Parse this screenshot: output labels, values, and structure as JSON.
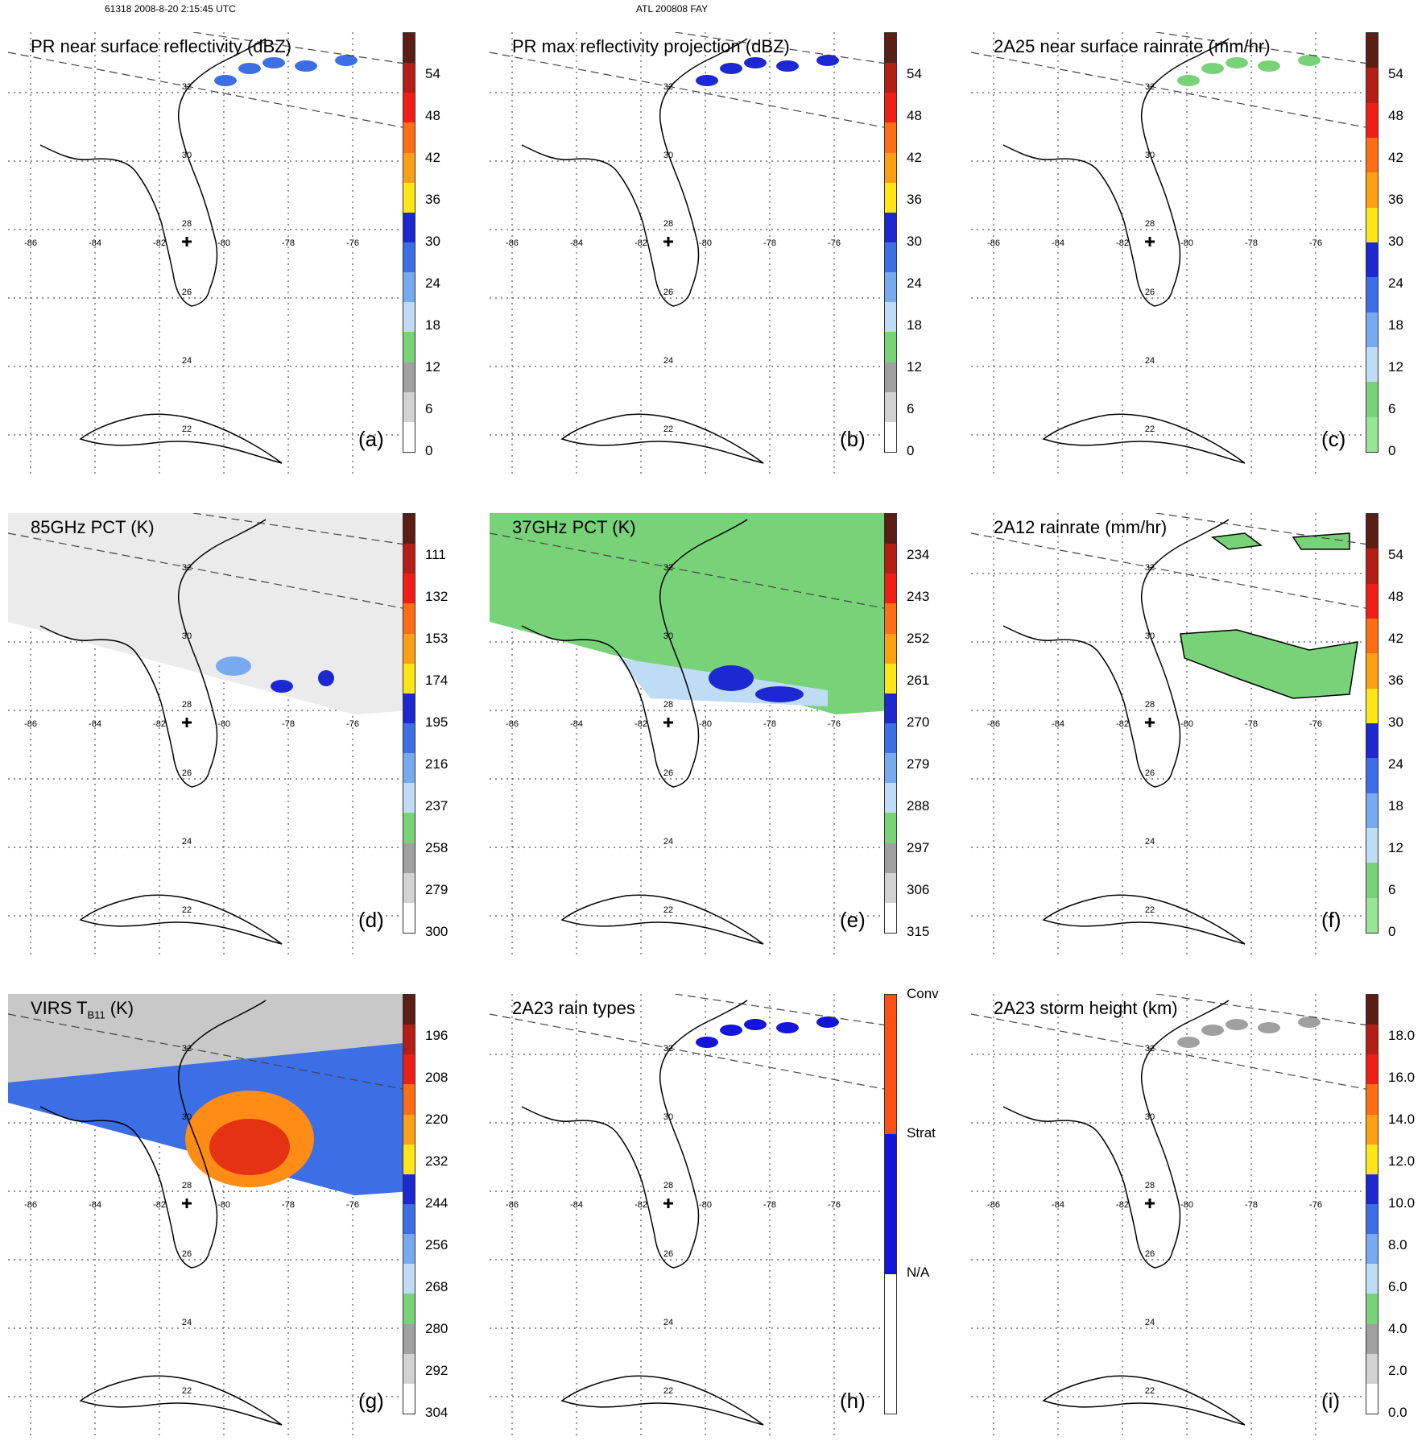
{
  "header": {
    "orbit_label": "61318 2008-8-20 2:15:45 UTC",
    "case_label": "ATL 200808 FAY"
  },
  "map": {
    "lon_labels": [
      "-86",
      "-84",
      "-82",
      "-80",
      "-78",
      "-76"
    ],
    "lat_labels": [
      "32",
      "30",
      "28",
      "26",
      "24",
      "22"
    ]
  },
  "panels": [
    {
      "id": "a",
      "title": "PR near surface reflectivity (dBZ)",
      "label": "(a)",
      "ticks": [
        "54",
        "48",
        "42",
        "36",
        "30",
        "24",
        "18",
        "12",
        "6",
        "0"
      ],
      "colors": [
        "#5a1e14",
        "#b41e14",
        "#f01e14",
        "#ff6e14",
        "#ffa014",
        "#ffe614",
        "#1e28d2",
        "#3c6ee6",
        "#78aaf0",
        "#bedcf5",
        "#78d278",
        "#a0a0a0",
        "#d2d2d2",
        "#ffffff"
      ]
    },
    {
      "id": "b",
      "title": "PR max reflectivity projection (dBZ)",
      "label": "(b)",
      "ticks": [
        "54",
        "48",
        "42",
        "36",
        "30",
        "24",
        "18",
        "12",
        "6",
        "0"
      ],
      "colors": [
        "#5a1e14",
        "#b41e14",
        "#f01e14",
        "#ff6e14",
        "#ffa014",
        "#ffe614",
        "#1e28d2",
        "#3c6ee6",
        "#78aaf0",
        "#bedcf5",
        "#78d278",
        "#a0a0a0",
        "#d2d2d2",
        "#ffffff"
      ]
    },
    {
      "id": "c",
      "title": "2A25 near surface rainrate (mm/hr)",
      "label": "(c)",
      "ticks": [
        "54",
        "48",
        "42",
        "36",
        "30",
        "24",
        "18",
        "12",
        "6",
        "0"
      ],
      "colors": [
        "#5a1e14",
        "#b41e14",
        "#f01e14",
        "#ff6e14",
        "#ffa014",
        "#ffe614",
        "#1e28d2",
        "#3c6ee6",
        "#78aaf0",
        "#bedcf5",
        "#78d278",
        "#96e696"
      ]
    },
    {
      "id": "d",
      "title": "85GHz PCT (K)",
      "label": "(d)",
      "ticks": [
        "111",
        "132",
        "153",
        "174",
        "195",
        "216",
        "237",
        "258",
        "279",
        "300"
      ],
      "colors": [
        "#5a1e14",
        "#b41e14",
        "#f01e14",
        "#ff6e14",
        "#ffa014",
        "#ffe614",
        "#1e28d2",
        "#3c6ee6",
        "#78aaf0",
        "#bedcf5",
        "#78d278",
        "#a0a0a0",
        "#d2d2d2",
        "#ffffff"
      ]
    },
    {
      "id": "e",
      "title": "37GHz PCT (K)",
      "label": "(e)",
      "ticks": [
        "234",
        "243",
        "252",
        "261",
        "270",
        "279",
        "288",
        "297",
        "306",
        "315"
      ],
      "colors": [
        "#5a1e14",
        "#b41e14",
        "#f01e14",
        "#ff6e14",
        "#ffa014",
        "#ffe614",
        "#1e28d2",
        "#3c6ee6",
        "#78aaf0",
        "#bedcf5",
        "#78d278",
        "#a0a0a0",
        "#d2d2d2",
        "#ffffff"
      ]
    },
    {
      "id": "f",
      "title": "2A12 rainrate (mm/hr)",
      "label": "(f)",
      "ticks": [
        "54",
        "48",
        "42",
        "36",
        "30",
        "24",
        "18",
        "12",
        "6",
        "0"
      ],
      "colors": [
        "#5a1e14",
        "#b41e14",
        "#f01e14",
        "#ff6e14",
        "#ffa014",
        "#ffe614",
        "#1e28d2",
        "#3c6ee6",
        "#78aaf0",
        "#bedcf5",
        "#78d278",
        "#96e696"
      ]
    },
    {
      "id": "g",
      "title": "VIRS T",
      "title_sub": "B11",
      "title_suffix": " (K)",
      "label": "(g)",
      "ticks": [
        "196",
        "208",
        "220",
        "232",
        "244",
        "256",
        "268",
        "280",
        "292",
        "304"
      ],
      "colors": [
        "#5a1e14",
        "#b41e14",
        "#f01e14",
        "#ff6e14",
        "#ffa014",
        "#ffe614",
        "#1e28d2",
        "#3c6ee6",
        "#78aaf0",
        "#bedcf5",
        "#78d278",
        "#a0a0a0",
        "#d2d2d2",
        "#ffffff"
      ]
    },
    {
      "id": "h",
      "title": "2A23 rain types",
      "label": "(h)",
      "ticks": [
        "Conv",
        "Strat",
        "N/A"
      ],
      "colors": [
        "#ff5014",
        "#1414dc",
        "#ffffff"
      ]
    },
    {
      "id": "i",
      "title": "2A23 storm height (km)",
      "label": "(i)",
      "ticks": [
        "18.0",
        "16.0",
        "14.0",
        "12.0",
        "10.0",
        "8.0",
        "6.0",
        "4.0",
        "2.0",
        "0.0"
      ],
      "colors": [
        "#5a1e14",
        "#b41e14",
        "#f01e14",
        "#ff6e14",
        "#ffa014",
        "#ffe614",
        "#1e28d2",
        "#3c6ee6",
        "#78aaf0",
        "#bedcf5",
        "#78d278",
        "#a0a0a0",
        "#d2d2d2",
        "#ffffff"
      ]
    }
  ]
}
